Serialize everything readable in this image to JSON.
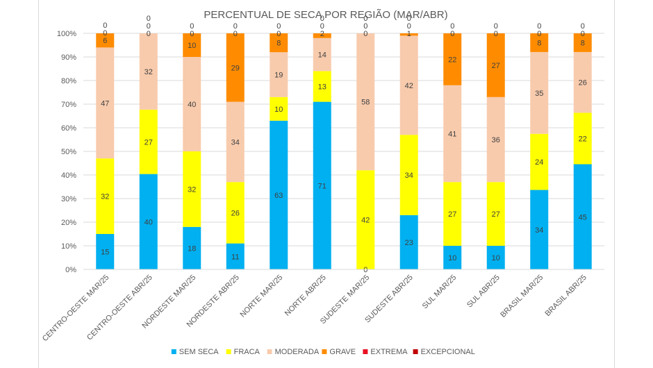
{
  "chart_data": {
    "type": "bar",
    "stacked": true,
    "percent": true,
    "title": "PERCENTUAL DE SECA POR REGIÃO (MAR/ABR)",
    "xlabel": "",
    "ylabel": "",
    "ylim": [
      0,
      100
    ],
    "yticks": [
      "0%",
      "10%",
      "20%",
      "30%",
      "40%",
      "50%",
      "60%",
      "70%",
      "80%",
      "90%",
      "100%"
    ],
    "grid": true,
    "legend_position": "bottom",
    "categories": [
      "CENTRO-OESTE MAR/25",
      "CENTRO-OESTE ABR/25",
      "NORDESTE MAR/25",
      "NORDESTE ABR/25",
      "NORTE MAR/25",
      "NORTE ABR/25",
      "SUDESTE MAR/25",
      "SUDESTE ABR/25",
      "SUL MAR/25",
      "SUL ABR/25",
      "BRASIL MAR/25",
      "BRASIL ABR/25"
    ],
    "series": [
      {
        "name": "SEM SECA",
        "color": "#00b0f0",
        "values": [
          15,
          40,
          18,
          11,
          63,
          71,
          0,
          23,
          10,
          10,
          34,
          45
        ]
      },
      {
        "name": "FRACA",
        "color": "#ffff00",
        "values": [
          32,
          27,
          32,
          26,
          10,
          13,
          42,
          34,
          27,
          27,
          24,
          22
        ]
      },
      {
        "name": "MODERADA",
        "color": "#f8cbad",
        "values": [
          47,
          32,
          40,
          34,
          19,
          14,
          58,
          42,
          41,
          36,
          35,
          26
        ]
      },
      {
        "name": "GRAVE",
        "color": "#ff8c00",
        "values": [
          6,
          0,
          10,
          29,
          8,
          2,
          0,
          1,
          22,
          27,
          8,
          8
        ]
      },
      {
        "name": "EXTREMA",
        "color": "#e81123",
        "values": [
          0,
          0,
          0,
          0,
          0,
          0,
          0,
          0,
          0,
          0,
          0,
          0
        ]
      },
      {
        "name": "EXCEPCIONAL",
        "color": "#c00000",
        "values": [
          0,
          0,
          0,
          0,
          0,
          0,
          0,
          0,
          0,
          0,
          0,
          0
        ]
      }
    ]
  }
}
